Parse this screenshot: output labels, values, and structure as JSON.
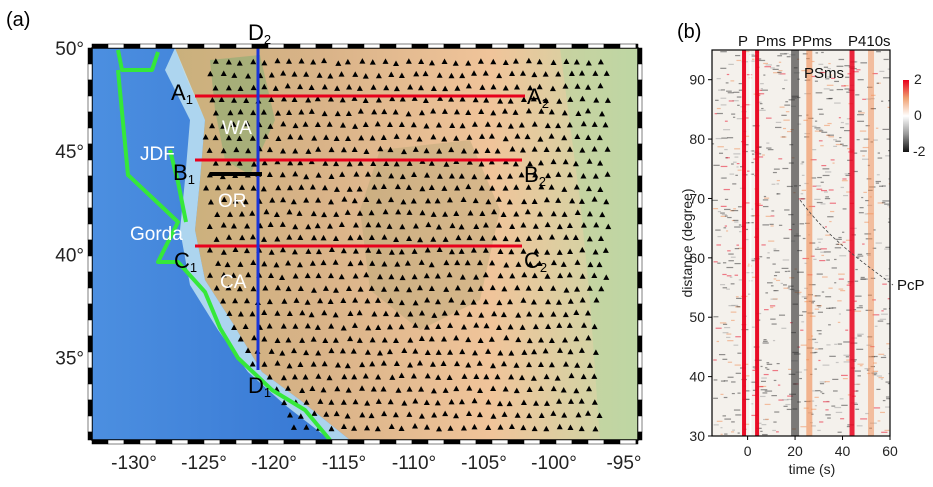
{
  "panel_a": {
    "label": "(a)",
    "regions": [
      "JDF",
      "Gorda",
      "WA",
      "OR",
      "CA"
    ],
    "profile_labels": {
      "A1": "A",
      "A1_sub": "1",
      "A2": "A",
      "A2_sub": "2",
      "B1": "B",
      "B1_sub": "1",
      "B2": "B",
      "B2_sub": "2",
      "C1": "C",
      "C1_sub": "1",
      "C2": "C",
      "C2_sub": "2",
      "D1": "D",
      "D1_sub": "1",
      "D2": "D",
      "D2_sub": "2"
    },
    "colors": {
      "profile_ew": "#e8001c",
      "profile_ns": "#1a35d8",
      "plate_boundary": "#35e83a",
      "station": "#000000",
      "ocean": "#3b7fd8",
      "land": "#e8b98a"
    }
  },
  "panel_b": {
    "label": "(b)",
    "phases": [
      "P",
      "Pms",
      "PPms",
      "P410s",
      "PSms",
      "PcP"
    ],
    "colorbar": {
      "max": "2",
      "mid": "0",
      "min": "-2",
      "colors": [
        "#1a1a1a",
        "#ffffff",
        "#e8001c"
      ]
    },
    "colors": {
      "positive": "#e8001c",
      "negative": "#222222"
    }
  },
  "chart_data": [
    {
      "type": "scatter",
      "title": "",
      "xlabel": "",
      "ylabel": "",
      "xlim": [
        -133,
        -94
      ],
      "ylim": [
        31,
        50
      ],
      "x_ticks": [
        "-130°",
        "-125°",
        "-120°",
        "-115°",
        "-110°",
        "-105°",
        "-100°",
        "-95°"
      ],
      "y_ticks": [
        "35°",
        "40°",
        "45°",
        "50°"
      ],
      "profiles": [
        {
          "name": "A1-A2",
          "start": [
            -125,
            48
          ],
          "end": [
            -104,
            48
          ]
        },
        {
          "name": "B1-B2",
          "start": [
            -125,
            45
          ],
          "end": [
            -104,
            45
          ]
        },
        {
          "name": "C1-C2",
          "start": [
            -125,
            41
          ],
          "end": [
            -104,
            41
          ]
        },
        {
          "name": "D1-D2",
          "start": [
            -121,
            35
          ],
          "end": [
            -121,
            50
          ]
        }
      ]
    },
    {
      "type": "heatmap",
      "title": "",
      "xlabel": "time (s)",
      "ylabel": "distance (degree)",
      "xlim": [
        -15,
        60
      ],
      "ylim": [
        30,
        95
      ],
      "x_ticks": [
        "0",
        "20",
        "40",
        "60"
      ],
      "y_ticks": [
        "30",
        "40",
        "50",
        "60",
        "70",
        "80",
        "90"
      ],
      "phase_times_s": {
        "P": 0,
        "Pms": 4,
        "PPms": 16,
        "P410s": 44,
        "PSms": 20
      },
      "value_range": [
        -2,
        2
      ]
    }
  ]
}
